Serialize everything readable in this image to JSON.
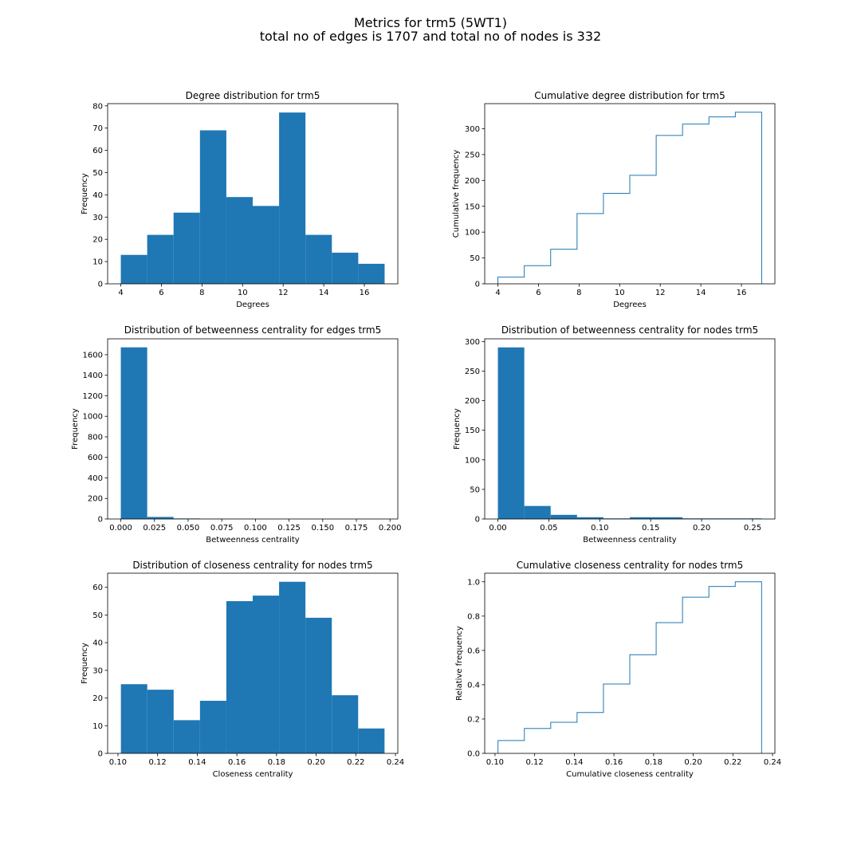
{
  "figure": {
    "suptitle_line1": "Metrics for trm5 (5WT1)",
    "suptitle_line2": "total no of edges is 1707 and total no of nodes is 332"
  },
  "colors": {
    "bar": "#1f77b4",
    "step": "#1f77b4",
    "axes": "#000000"
  },
  "chart_data": [
    {
      "id": "degree",
      "type": "bar",
      "title": "Degree distribution for trm5",
      "xlabel": "Degrees",
      "ylabel": "Frequency",
      "xlim": [
        3.35,
        17.65
      ],
      "ylim": [
        0,
        81
      ],
      "bin_edges": [
        4,
        5.3,
        6.6,
        7.9,
        9.2,
        10.5,
        11.8,
        13.1,
        14.4,
        15.7,
        17
      ],
      "values": [
        13,
        22,
        32,
        69,
        39,
        35,
        77,
        22,
        14,
        9
      ],
      "xticks": [
        4,
        6,
        8,
        10,
        12,
        14,
        16
      ],
      "xtick_labels": [
        "4",
        "6",
        "8",
        "10",
        "12",
        "14",
        "16"
      ],
      "yticks": [
        0,
        10,
        20,
        30,
        40,
        50,
        60,
        70,
        80
      ],
      "ytick_labels": [
        "0",
        "10",
        "20",
        "30",
        "40",
        "50",
        "60",
        "70",
        "80"
      ]
    },
    {
      "id": "cumdegree",
      "type": "step",
      "title": "Cumulative degree distribution for trm5",
      "xlabel": "Degrees",
      "ylabel": "Cumulative frequency",
      "xlim": [
        3.35,
        17.65
      ],
      "ylim": [
        0,
        348.6
      ],
      "bin_edges": [
        4,
        5.3,
        6.6,
        7.9,
        9.2,
        10.5,
        11.8,
        13.1,
        14.4,
        15.7,
        17
      ],
      "values": [
        13,
        35,
        67,
        136,
        175,
        210,
        287,
        309,
        323,
        332
      ],
      "xticks": [
        4,
        6,
        8,
        10,
        12,
        14,
        16
      ],
      "xtick_labels": [
        "4",
        "6",
        "8",
        "10",
        "12",
        "14",
        "16"
      ],
      "yticks": [
        0,
        50,
        100,
        150,
        200,
        250,
        300
      ],
      "ytick_labels": [
        "0",
        "50",
        "100",
        "150",
        "200",
        "250",
        "300"
      ]
    },
    {
      "id": "betw_edges",
      "type": "bar",
      "title": "Distribution of betweenness centrality for edges trm5",
      "xlabel": "Betweenness centrality",
      "ylabel": "Frequency",
      "xlim": [
        -0.0098,
        0.2058
      ],
      "ylim": [
        0,
        1755
      ],
      "bin_edges": [
        0,
        0.0196,
        0.0392,
        0.0588,
        0.0784,
        0.098,
        0.1176,
        0.1372,
        0.1568,
        0.1764,
        0.196
      ],
      "values": [
        1672,
        20,
        5,
        3,
        2,
        1,
        1,
        1,
        1,
        1
      ],
      "xticks": [
        0,
        0.025,
        0.05,
        0.075,
        0.1,
        0.125,
        0.15,
        0.175,
        0.2
      ],
      "xtick_labels": [
        "0.000",
        "0.025",
        "0.050",
        "0.075",
        "0.100",
        "0.125",
        "0.150",
        "0.175",
        "0.200"
      ],
      "yticks": [
        0,
        200,
        400,
        600,
        800,
        1000,
        1200,
        1400,
        1600
      ],
      "ytick_labels": [
        "0",
        "200",
        "400",
        "600",
        "800",
        "1000",
        "1200",
        "1400",
        "1600"
      ]
    },
    {
      "id": "betw_nodes",
      "type": "bar",
      "title": "Distribution of betweenness centrality for nodes trm5",
      "xlabel": "Betweenness centrality",
      "ylabel": "Frequency",
      "xlim": [
        -0.01295,
        0.27195
      ],
      "ylim": [
        0,
        304.5
      ],
      "bin_edges": [
        0,
        0.0259,
        0.0518,
        0.0777,
        0.1036,
        0.1295,
        0.1554,
        0.1813,
        0.2072,
        0.2331,
        0.259
      ],
      "values": [
        290,
        22,
        7,
        3,
        1,
        3,
        3,
        1,
        1,
        1
      ],
      "xticks": [
        0,
        0.05,
        0.1,
        0.15,
        0.2,
        0.25
      ],
      "xtick_labels": [
        "0.00",
        "0.05",
        "0.10",
        "0.15",
        "0.20",
        "0.25"
      ],
      "yticks": [
        0,
        50,
        100,
        150,
        200,
        250,
        300
      ],
      "ytick_labels": [
        "0",
        "50",
        "100",
        "150",
        "200",
        "250",
        "300"
      ]
    },
    {
      "id": "closeness",
      "type": "bar",
      "title": "Distribution of closeness centrality for nodes trm5",
      "xlabel": "Closeness centrality",
      "ylabel": "Frequency",
      "xlim": [
        0.0948,
        0.2412
      ],
      "ylim": [
        0,
        65.1
      ],
      "bin_edges": [
        0.1015,
        0.1148,
        0.1281,
        0.1414,
        0.1547,
        0.168,
        0.1813,
        0.1946,
        0.2079,
        0.2212,
        0.2345
      ],
      "values": [
        25,
        23,
        12,
        19,
        55,
        57,
        62,
        49,
        21,
        9
      ],
      "xticks": [
        0.1,
        0.12,
        0.14,
        0.16,
        0.18,
        0.2,
        0.22,
        0.24
      ],
      "xtick_labels": [
        "0.10",
        "0.12",
        "0.14",
        "0.16",
        "0.18",
        "0.20",
        "0.22",
        "0.24"
      ],
      "yticks": [
        0,
        10,
        20,
        30,
        40,
        50,
        60
      ],
      "ytick_labels": [
        "0",
        "10",
        "20",
        "30",
        "40",
        "50",
        "60"
      ]
    },
    {
      "id": "cumcloseness",
      "type": "step",
      "title": "Cumulative closeness centrality for nodes trm5",
      "xlabel": "Cumulative closeness centrality",
      "ylabel": "Relative frequency",
      "xlim": [
        0.0948,
        0.2412
      ],
      "ylim": [
        0,
        1.05
      ],
      "bin_edges": [
        0.1015,
        0.1148,
        0.1281,
        0.1414,
        0.1547,
        0.168,
        0.1813,
        0.1946,
        0.2079,
        0.2212,
        0.2345
      ],
      "values": [
        0.075,
        0.145,
        0.181,
        0.238,
        0.404,
        0.575,
        0.762,
        0.91,
        0.973,
        1.0
      ],
      "xticks": [
        0.1,
        0.12,
        0.14,
        0.16,
        0.18,
        0.2,
        0.22,
        0.24
      ],
      "xtick_labels": [
        "0.10",
        "0.12",
        "0.14",
        "0.16",
        "0.18",
        "0.20",
        "0.22",
        "0.24"
      ],
      "yticks": [
        0,
        0.2,
        0.4,
        0.6,
        0.8,
        1.0
      ],
      "ytick_labels": [
        "0.0",
        "0.2",
        "0.4",
        "0.6",
        "0.8",
        "1.0"
      ]
    }
  ]
}
